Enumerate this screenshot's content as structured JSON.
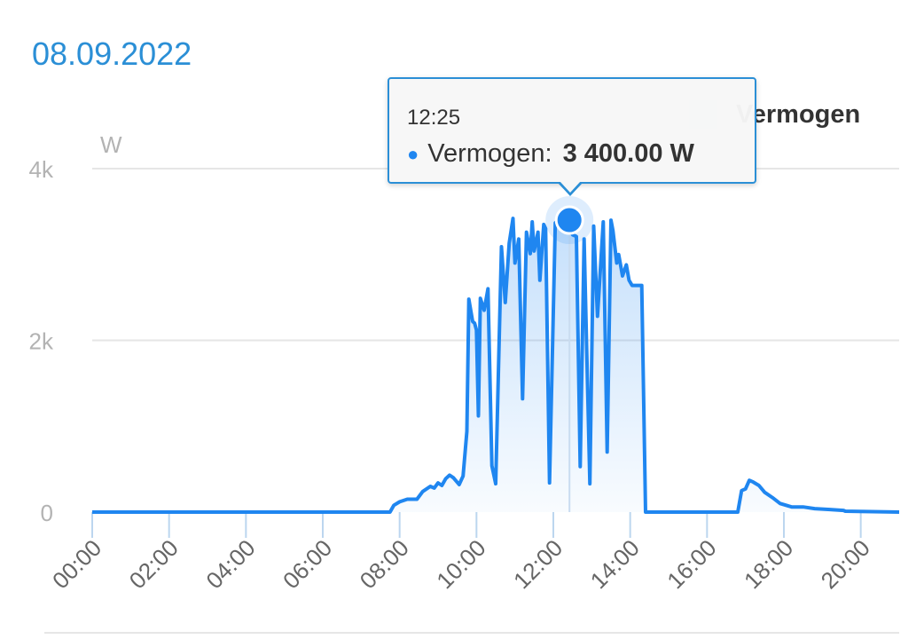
{
  "header": {
    "date": "08.09.2022"
  },
  "legend": {
    "label": "Vermogen",
    "swatch_color": "#d8e7f7"
  },
  "tooltip": {
    "time": "12:25",
    "series_label": "Vermogen:",
    "value_text": "3 400.00 W"
  },
  "colors": {
    "line": "#1f86f0",
    "accent": "#2b8fd6",
    "grid": "#e6e6e6",
    "axis_text": "#b3b3b3"
  },
  "chart_data": {
    "type": "area",
    "ylabel": "W",
    "y_tick_labels": [
      "0",
      "2k",
      "4k"
    ],
    "y_ticks": [
      0,
      2000,
      4000
    ],
    "x_tick_labels": [
      "00:00",
      "02:00",
      "04:00",
      "06:00",
      "08:00",
      "10:00",
      "12:00",
      "14:00",
      "16:00",
      "18:00",
      "20:00"
    ],
    "x_ticks_hours": [
      0,
      2,
      4,
      6,
      8,
      10,
      12,
      14,
      16,
      18,
      20
    ],
    "xlim_hours": [
      0,
      21
    ],
    "ylim": [
      0,
      4000
    ],
    "grid": true,
    "legend_position": "top-right",
    "highlight": {
      "time": "12:25",
      "x_hours": 12.42,
      "value": 3400
    },
    "series": [
      {
        "name": "Vermogen",
        "unit": "W",
        "x_hours": [
          0,
          7.75,
          7.85,
          8.0,
          8.2,
          8.45,
          8.6,
          8.8,
          8.9,
          9.0,
          9.1,
          9.2,
          9.3,
          9.4,
          9.55,
          9.65,
          9.75,
          9.8,
          9.9,
          9.95,
          10.0,
          10.05,
          10.1,
          10.2,
          10.3,
          10.4,
          10.5,
          10.65,
          10.75,
          10.85,
          10.95,
          11.0,
          11.1,
          11.2,
          11.3,
          11.4,
          11.45,
          11.5,
          11.6,
          11.65,
          11.75,
          11.8,
          11.9,
          12.05,
          12.15,
          12.25,
          12.32,
          12.42,
          12.5,
          12.6,
          12.7,
          12.8,
          12.95,
          13.05,
          13.15,
          13.3,
          13.4,
          13.5,
          13.55,
          13.65,
          13.7,
          13.8,
          13.9,
          13.97,
          14.05,
          14.2,
          14.3,
          14.4,
          14.52,
          14.62,
          16.8,
          16.9,
          17.0,
          17.1,
          17.2,
          17.35,
          17.5,
          17.7,
          17.9,
          18.2,
          18.5,
          18.8,
          19.2,
          19.55,
          19.6,
          21.0
        ],
        "values": [
          0,
          0,
          80,
          120,
          150,
          150,
          240,
          300,
          280,
          340,
          310,
          390,
          430,
          400,
          320,
          420,
          940,
          2480,
          2220,
          2200,
          2120,
          1120,
          2490,
          2350,
          2600,
          540,
          330,
          3090,
          2440,
          3130,
          3420,
          2900,
          3180,
          1320,
          3260,
          3010,
          3380,
          3040,
          3260,
          2700,
          3350,
          3300,
          340,
          3370,
          3400,
          3380,
          3410,
          3400,
          3230,
          3210,
          530,
          3180,
          330,
          3330,
          2280,
          3380,
          700,
          3400,
          3280,
          2900,
          3000,
          2750,
          2880,
          2700,
          2640,
          2640,
          2640,
          0,
          0,
          0,
          0,
          250,
          270,
          370,
          350,
          310,
          230,
          170,
          100,
          60,
          60,
          40,
          30,
          20,
          10,
          0
        ]
      }
    ]
  }
}
